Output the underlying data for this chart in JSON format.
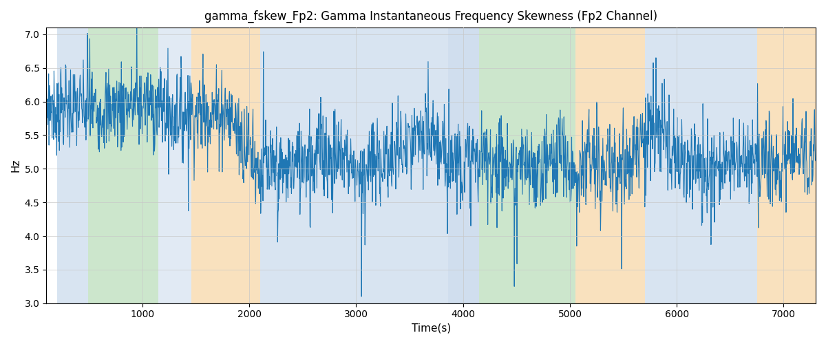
{
  "title": "gamma_fskew_Fp2: Gamma Instantaneous Frequency Skewness (Fp2 Channel)",
  "xlabel": "Time(s)",
  "ylabel": "Hz",
  "ylim": [
    3.0,
    7.1
  ],
  "xlim": [
    100,
    7300
  ],
  "yticks": [
    3.0,
    3.5,
    4.0,
    4.5,
    5.0,
    5.5,
    6.0,
    6.5,
    7.0
  ],
  "line_color": "#1f77b4",
  "line_width": 0.8,
  "grid_color": "#c8c8c8",
  "bands": [
    {
      "start": 200,
      "end": 490,
      "color": "#aac4e0",
      "alpha": 0.45
    },
    {
      "start": 490,
      "end": 1150,
      "color": "#8ec88e",
      "alpha": 0.45
    },
    {
      "start": 1150,
      "end": 1460,
      "color": "#aac4e0",
      "alpha": 0.35
    },
    {
      "start": 1460,
      "end": 2100,
      "color": "#f5c98a",
      "alpha": 0.55
    },
    {
      "start": 2100,
      "end": 3860,
      "color": "#aac4e0",
      "alpha": 0.45
    },
    {
      "start": 3860,
      "end": 4150,
      "color": "#aac4e0",
      "alpha": 0.55
    },
    {
      "start": 4150,
      "end": 5050,
      "color": "#8ec88e",
      "alpha": 0.45
    },
    {
      "start": 5050,
      "end": 5700,
      "color": "#f5c98a",
      "alpha": 0.55
    },
    {
      "start": 5700,
      "end": 6750,
      "color": "#aac4e0",
      "alpha": 0.45
    },
    {
      "start": 6750,
      "end": 7300,
      "color": "#f5c98a",
      "alpha": 0.55
    }
  ],
  "signal_mean": 5.45,
  "signal_std": 0.32,
  "spike_magnitude": 1.2,
  "n_spikes": 55,
  "seed": 7
}
